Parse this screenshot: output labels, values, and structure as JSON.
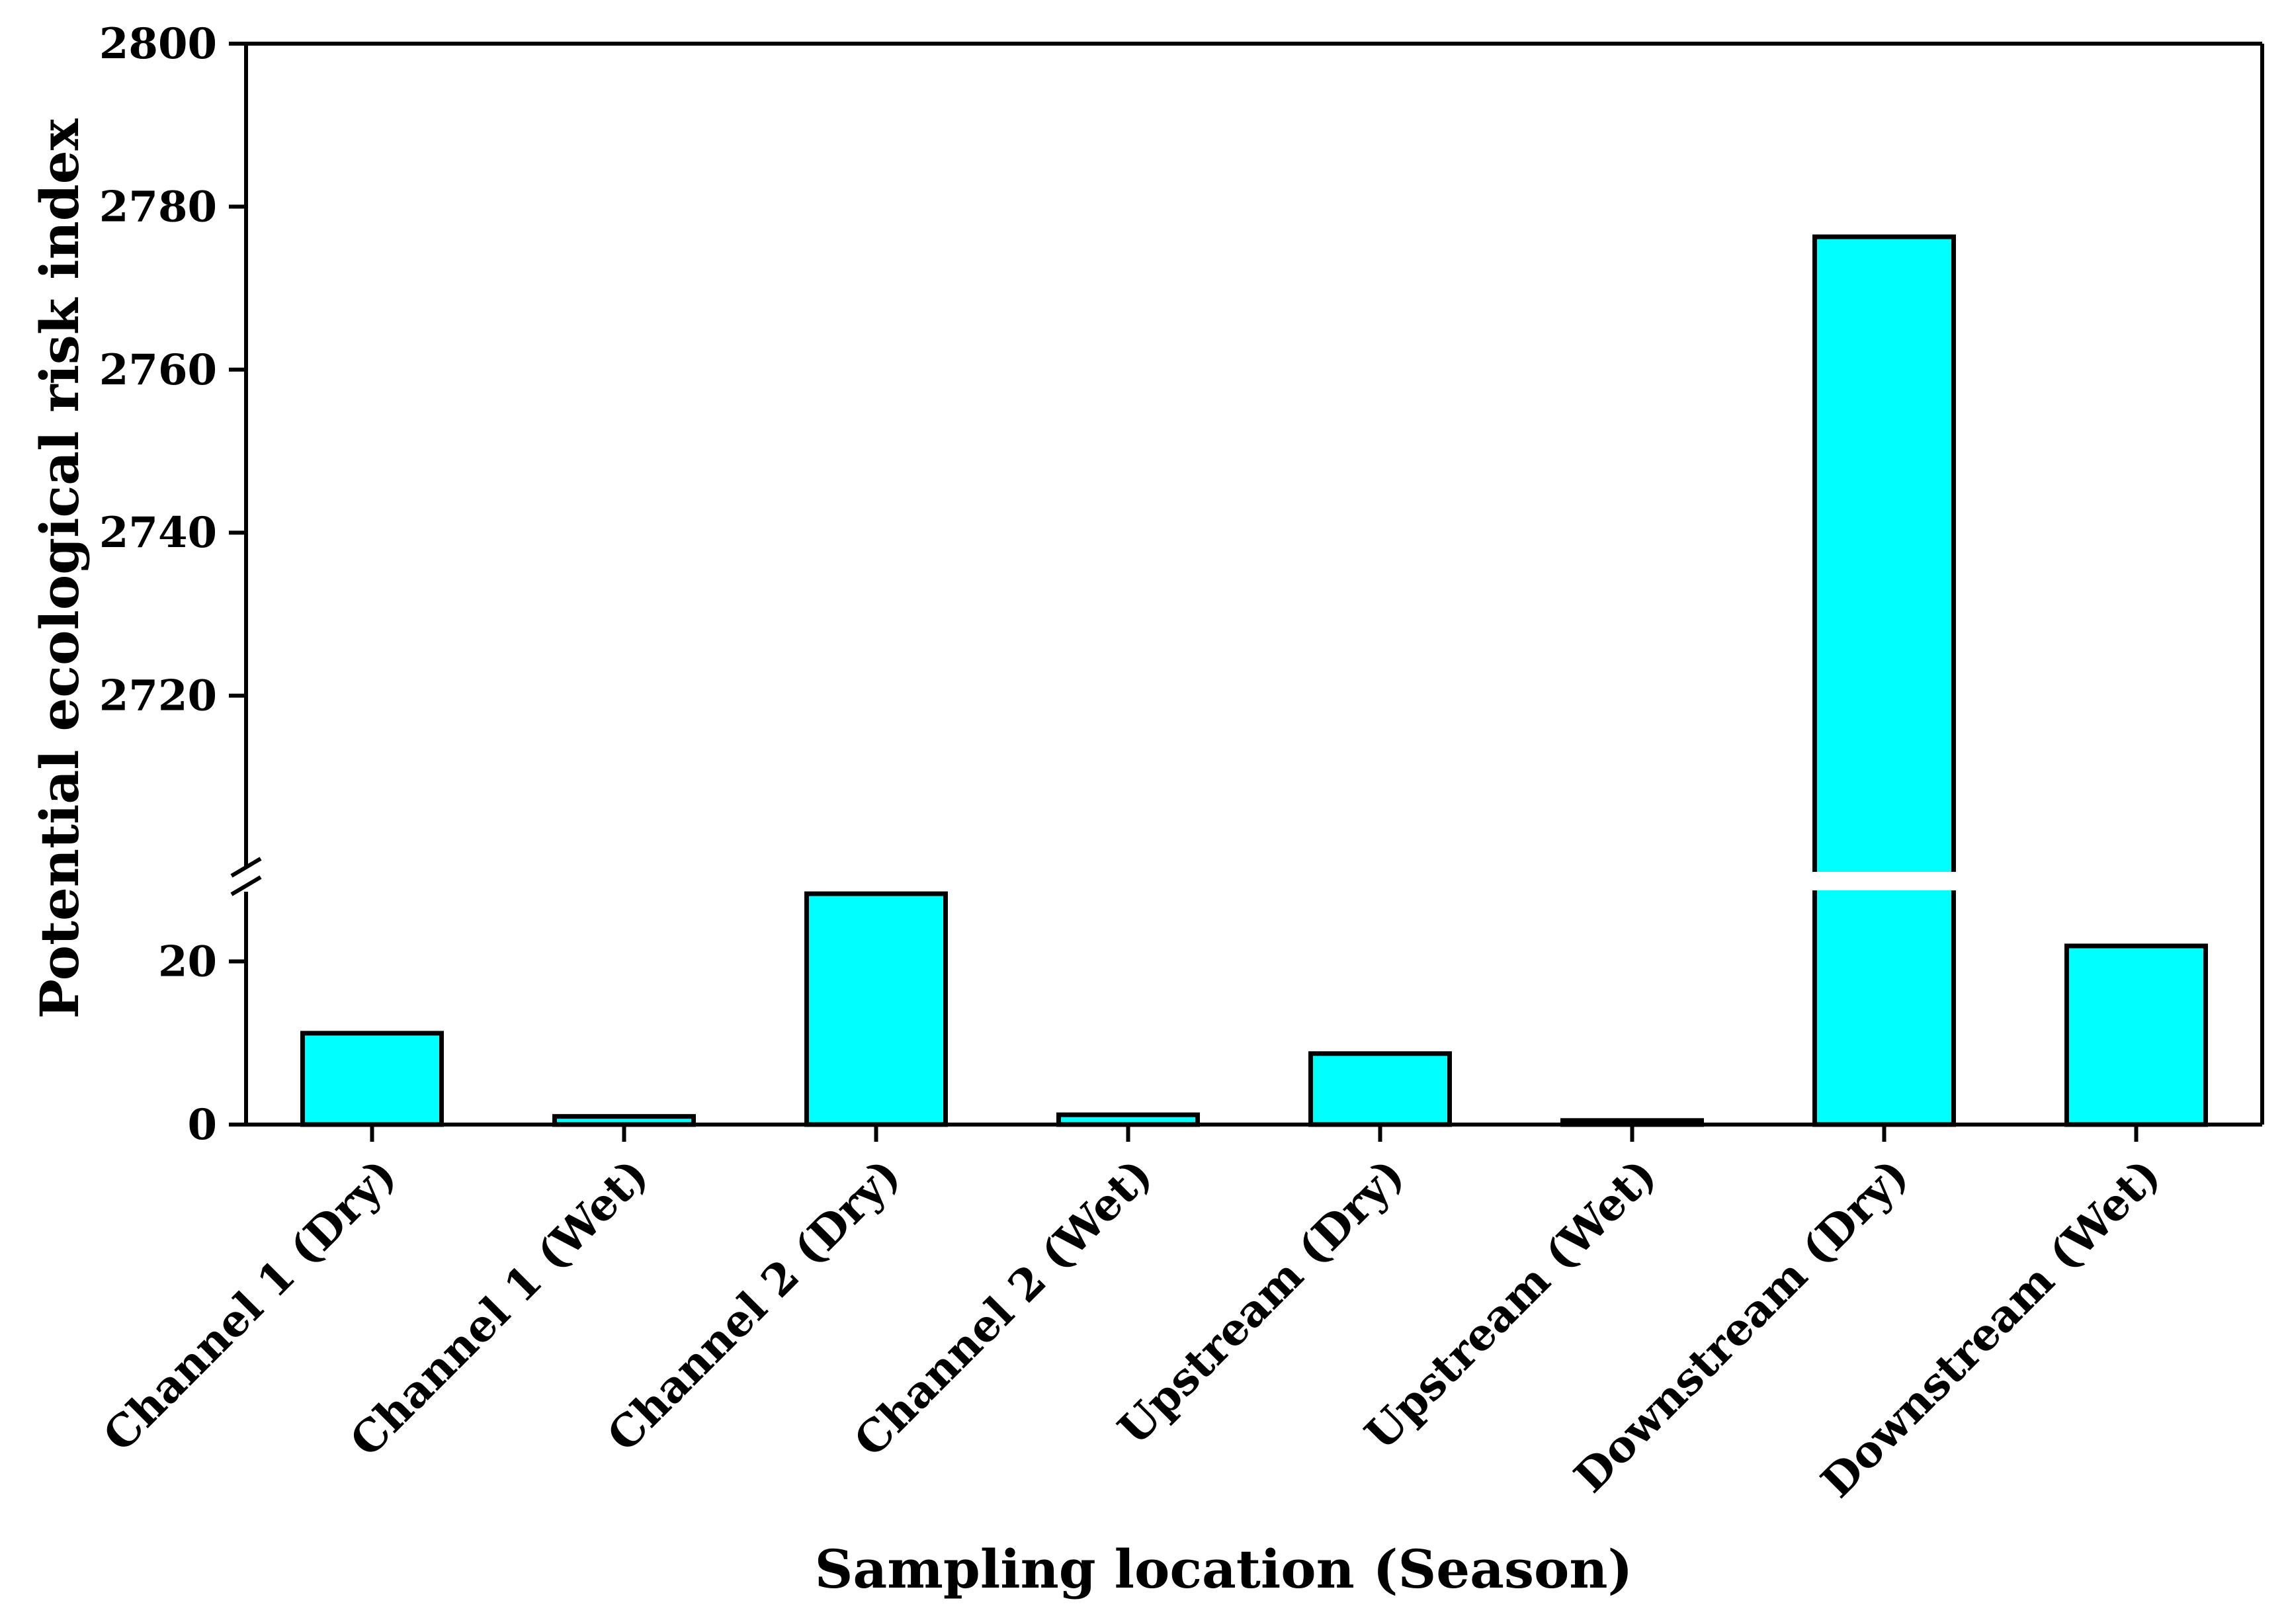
{
  "chart_data": {
    "type": "bar",
    "title": "",
    "xlabel": "Sampling location (Season)",
    "ylabel": "Potential ecological risk index",
    "categories": [
      "Channel 1 (Dry)",
      "Channel 1 (Wet)",
      "Channel 2 (Dry)",
      "Channel 2 (Wet)",
      "Upstream (Dry)",
      "Upstream (Wet)",
      "Downstream (Dry)",
      "Downstream (Wet)"
    ],
    "values": [
      11.2,
      1.0,
      28.3,
      1.2,
      8.7,
      0.5,
      2776.3,
      21.9
    ],
    "y_axis_break": {
      "lower_segment": [
        0,
        30
      ],
      "upper_segment": [
        2700,
        2800
      ]
    },
    "y_ticks_lower": [
      {
        "value": 0,
        "label": "0"
      },
      {
        "value": 20,
        "label": "20"
      }
    ],
    "y_ticks_upper": [
      {
        "value": 2720,
        "label": "2720"
      },
      {
        "value": 2740,
        "label": "2740"
      },
      {
        "value": 2760,
        "label": "2760"
      },
      {
        "value": 2780,
        "label": "2780"
      },
      {
        "value": 2800,
        "label": "2800"
      }
    ],
    "grid": false,
    "legend": "none",
    "colors": {
      "bar_fill": "#00FFFF",
      "bar_stroke": "#000000",
      "axis": "#000000",
      "background": "#FFFFFF"
    }
  }
}
